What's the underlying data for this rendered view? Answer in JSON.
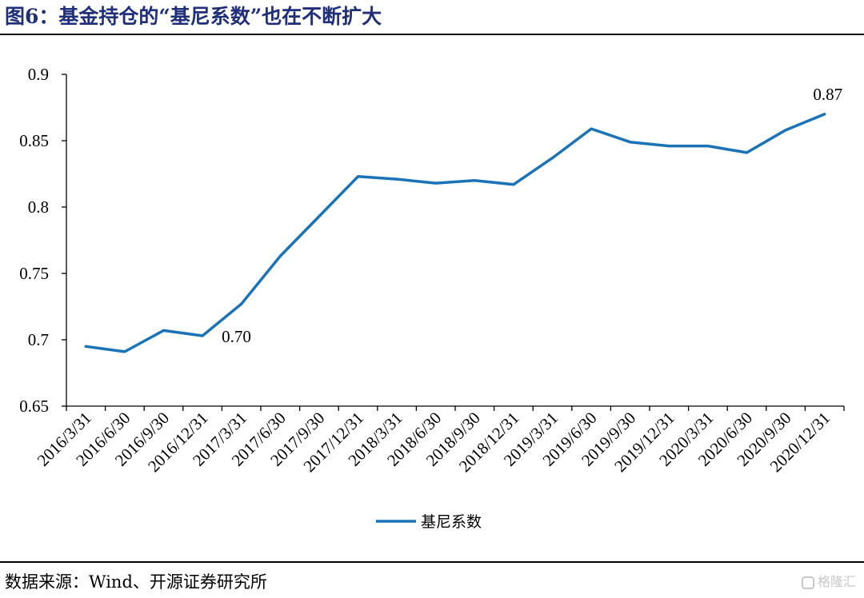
{
  "header": {
    "title": "图6：基金持仓的“基尼系数”也在不断扩大"
  },
  "footer": {
    "source": "数据来源：Wind、开源证券研究所",
    "watermark": "格隆汇"
  },
  "chart_data": {
    "type": "line",
    "categories": [
      "2016/3/31",
      "2016/6/30",
      "2016/9/30",
      "2016/12/31",
      "2017/3/31",
      "2017/6/30",
      "2017/9/30",
      "2017/12/31",
      "2018/3/31",
      "2018/6/30",
      "2018/9/30",
      "2018/12/31",
      "2019/3/31",
      "2019/6/30",
      "2019/9/30",
      "2019/12/31",
      "2020/3/31",
      "2020/6/30",
      "2020/9/30",
      "2020/12/31"
    ],
    "series": [
      {
        "name": "基尼系数",
        "color": "#1a73b8",
        "values": [
          0.695,
          0.691,
          0.707,
          0.703,
          0.727,
          0.763,
          0.793,
          0.823,
          0.821,
          0.818,
          0.82,
          0.817,
          0.837,
          0.859,
          0.849,
          0.846,
          0.846,
          0.841,
          0.858,
          0.87
        ]
      }
    ],
    "ylim": [
      0.65,
      0.9
    ],
    "yticks": [
      "0.65",
      "0.7",
      "0.75",
      "0.8",
      "0.85",
      "0.9"
    ],
    "data_labels": [
      {
        "index": 3,
        "text": "0.70"
      },
      {
        "index": 19,
        "text": "0.87"
      }
    ],
    "legend_position": "bottom-center",
    "grid": false,
    "xlabel": "",
    "ylabel": ""
  }
}
